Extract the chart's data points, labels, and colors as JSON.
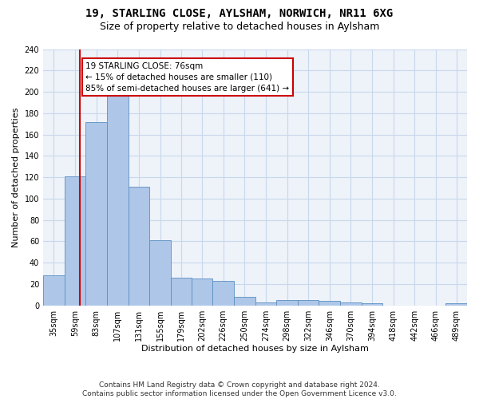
{
  "title": "19, STARLING CLOSE, AYLSHAM, NORWICH, NR11 6XG",
  "subtitle": "Size of property relative to detached houses in Aylsham",
  "xlabel": "Distribution of detached houses by size in Aylsham",
  "ylabel": "Number of detached properties",
  "bar_color": "#aec6e8",
  "bar_edge_color": "#5a8fc2",
  "vline_color": "#cc0000",
  "vline_x": 76,
  "annotation_text": "19 STARLING CLOSE: 76sqm\n← 15% of detached houses are smaller (110)\n85% of semi-detached houses are larger (641) →",
  "bin_edges": [
    35,
    59,
    83,
    107,
    131,
    155,
    179,
    202,
    226,
    250,
    274,
    298,
    322,
    346,
    370,
    394,
    418,
    442,
    466,
    489,
    513
  ],
  "bar_heights": [
    28,
    121,
    172,
    196,
    111,
    61,
    26,
    25,
    23,
    8,
    3,
    5,
    5,
    4,
    3,
    2,
    0,
    0,
    0,
    2
  ],
  "ylim": [
    0,
    240
  ],
  "yticks": [
    0,
    20,
    40,
    60,
    80,
    100,
    120,
    140,
    160,
    180,
    200,
    220,
    240
  ],
  "footer": "Contains HM Land Registry data © Crown copyright and database right 2024.\nContains public sector information licensed under the Open Government Licence v3.0.",
  "background_color": "#eef2f9",
  "grid_color": "#c8d8ec",
  "title_fontsize": 10,
  "subtitle_fontsize": 9,
  "tick_label_fontsize": 7,
  "axis_label_fontsize": 8,
  "footer_fontsize": 6.5,
  "annotation_fontsize": 7.5
}
